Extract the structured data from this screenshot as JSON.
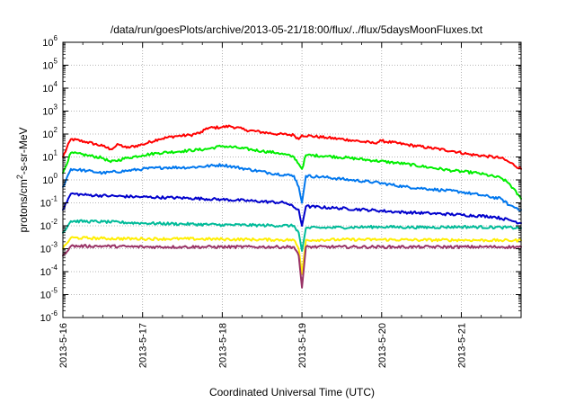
{
  "chart_data": {
    "type": "line",
    "title": "/data/run/goesPlots/archive/2013-05-21/18:00/flux/../flux/5daysMoonFluxes.txt",
    "xlabel": "Coordinated Universal Time (UTC)",
    "ylabel_parts": [
      "protons/cm",
      "2",
      "-s-sr-MeV"
    ],
    "y_scale": "log",
    "ylim_exp": [
      -6,
      6
    ],
    "xlim_days": [
      0,
      5.75
    ],
    "x_ticks": [
      {
        "day": 0,
        "label": "2013-5-16"
      },
      {
        "day": 1,
        "label": "2013-5-17"
      },
      {
        "day": 2,
        "label": "2013-5-18"
      },
      {
        "day": 3,
        "label": "2013-5-19"
      },
      {
        "day": 4,
        "label": "2013-5-20"
      },
      {
        "day": 5,
        "label": "2013-5-21"
      }
    ],
    "y_ticks": [
      {
        "exp": -6,
        "base": "10",
        "sup": "-6"
      },
      {
        "exp": -5,
        "base": "10",
        "sup": "-5"
      },
      {
        "exp": -4,
        "base": "10",
        "sup": "-4"
      },
      {
        "exp": -3,
        "base": "10",
        "sup": "-3"
      },
      {
        "exp": -2,
        "base": "10",
        "sup": "-2"
      },
      {
        "exp": -1,
        "base": "10",
        "sup": "-1"
      },
      {
        "exp": 0,
        "base": "10",
        "sup": "0"
      },
      {
        "exp": 1,
        "base": "10",
        "sup": "1"
      },
      {
        "exp": 2,
        "base": "10",
        "sup": "2"
      },
      {
        "exp": 3,
        "base": "10",
        "sup": "3"
      },
      {
        "exp": 4,
        "base": "10",
        "sup": "4"
      },
      {
        "exp": 5,
        "base": "10",
        "sup": "5"
      },
      {
        "exp": 6,
        "base": "10",
        "sup": "6"
      }
    ],
    "grid": true,
    "series": [
      {
        "color": "#ff0000",
        "points": [
          [
            0,
            10
          ],
          [
            0.1,
            60
          ],
          [
            0.3,
            45
          ],
          [
            0.5,
            30
          ],
          [
            0.6,
            22
          ],
          [
            0.7,
            35
          ],
          [
            0.8,
            25
          ],
          [
            1.0,
            35
          ],
          [
            1.2,
            60
          ],
          [
            1.4,
            80
          ],
          [
            1.6,
            90
          ],
          [
            1.75,
            120
          ],
          [
            1.8,
            180
          ],
          [
            2.0,
            200
          ],
          [
            2.1,
            220
          ],
          [
            2.3,
            150
          ],
          [
            2.5,
            120
          ],
          [
            2.7,
            100
          ],
          [
            2.9,
            90
          ],
          [
            2.96,
            60
          ],
          [
            3.0,
            90
          ],
          [
            3.3,
            70
          ],
          [
            3.6,
            55
          ],
          [
            3.9,
            40
          ],
          [
            4.0,
            50
          ],
          [
            4.3,
            35
          ],
          [
            4.6,
            25
          ],
          [
            4.9,
            18
          ],
          [
            5.1,
            13
          ],
          [
            5.3,
            11
          ],
          [
            5.5,
            9
          ],
          [
            5.6,
            6
          ],
          [
            5.75,
            3
          ]
        ]
      },
      {
        "color": "#00ee00",
        "points": [
          [
            0,
            2
          ],
          [
            0.1,
            15
          ],
          [
            0.3,
            12
          ],
          [
            0.5,
            9
          ],
          [
            0.6,
            6
          ],
          [
            0.8,
            9
          ],
          [
            1.0,
            12
          ],
          [
            1.2,
            15
          ],
          [
            1.5,
            18
          ],
          [
            1.8,
            22
          ],
          [
            2.0,
            30
          ],
          [
            2.2,
            25
          ],
          [
            2.5,
            18
          ],
          [
            2.7,
            15
          ],
          [
            2.9,
            10
          ],
          [
            2.96,
            5
          ],
          [
            3.0,
            3
          ],
          [
            3.05,
            12
          ],
          [
            3.3,
            11
          ],
          [
            3.6,
            9
          ],
          [
            3.9,
            7
          ],
          [
            4.3,
            5
          ],
          [
            4.6,
            3.5
          ],
          [
            4.9,
            2.5
          ],
          [
            5.2,
            2
          ],
          [
            5.5,
            1.2
          ],
          [
            5.6,
            0.7
          ],
          [
            5.75,
            0.15
          ]
        ]
      },
      {
        "color": "#0077ee",
        "points": [
          [
            0,
            0.5
          ],
          [
            0.1,
            3
          ],
          [
            0.3,
            2.5
          ],
          [
            0.5,
            2
          ],
          [
            0.8,
            2.5
          ],
          [
            1.0,
            3
          ],
          [
            1.3,
            3.5
          ],
          [
            1.6,
            3.5
          ],
          [
            2.0,
            4.5
          ],
          [
            2.3,
            3
          ],
          [
            2.6,
            2
          ],
          [
            2.9,
            1.5
          ],
          [
            2.96,
            0.5
          ],
          [
            3.0,
            0.1
          ],
          [
            3.05,
            1.5
          ],
          [
            3.3,
            1.3
          ],
          [
            3.6,
            1
          ],
          [
            3.9,
            0.8
          ],
          [
            4.3,
            0.5
          ],
          [
            4.6,
            0.4
          ],
          [
            5.0,
            0.3
          ],
          [
            5.3,
            0.2
          ],
          [
            5.5,
            0.15
          ],
          [
            5.6,
            0.08
          ],
          [
            5.75,
            0.05
          ]
        ]
      },
      {
        "color": "#0000cc",
        "points": [
          [
            0,
            0.05
          ],
          [
            0.1,
            0.25
          ],
          [
            0.3,
            0.22
          ],
          [
            0.6,
            0.2
          ],
          [
            1.0,
            0.18
          ],
          [
            1.3,
            0.17
          ],
          [
            1.6,
            0.16
          ],
          [
            2.0,
            0.14
          ],
          [
            2.4,
            0.12
          ],
          [
            2.8,
            0.1
          ],
          [
            2.96,
            0.05
          ],
          [
            3.0,
            0.01
          ],
          [
            3.05,
            0.07
          ],
          [
            3.4,
            0.06
          ],
          [
            3.8,
            0.05
          ],
          [
            4.2,
            0.04
          ],
          [
            4.6,
            0.035
          ],
          [
            5.0,
            0.03
          ],
          [
            5.4,
            0.025
          ],
          [
            5.6,
            0.018
          ],
          [
            5.75,
            0.013
          ]
        ]
      },
      {
        "color": "#00bb99",
        "points": [
          [
            0,
            0.005
          ],
          [
            0.1,
            0.016
          ],
          [
            0.5,
            0.015
          ],
          [
            1.0,
            0.013
          ],
          [
            1.5,
            0.012
          ],
          [
            2.0,
            0.011
          ],
          [
            2.5,
            0.0105
          ],
          [
            2.9,
            0.01
          ],
          [
            2.96,
            0.005
          ],
          [
            3.0,
            0.0008
          ],
          [
            3.05,
            0.008
          ],
          [
            3.5,
            0.0085
          ],
          [
            4.0,
            0.009
          ],
          [
            4.5,
            0.0085
          ],
          [
            5.0,
            0.009
          ],
          [
            5.5,
            0.0085
          ],
          [
            5.75,
            0.008
          ]
        ]
      },
      {
        "color": "#ffee00",
        "points": [
          [
            0,
            0.001
          ],
          [
            0.1,
            0.003
          ],
          [
            0.5,
            0.0028
          ],
          [
            1.0,
            0.0027
          ],
          [
            1.5,
            0.0027
          ],
          [
            2.0,
            0.0026
          ],
          [
            2.5,
            0.0025
          ],
          [
            2.9,
            0.0024
          ],
          [
            2.96,
            0.001
          ],
          [
            3.0,
            8e-05
          ],
          [
            3.05,
            0.0024
          ],
          [
            3.5,
            0.0025
          ],
          [
            4.0,
            0.0025
          ],
          [
            4.5,
            0.0024
          ],
          [
            5.0,
            0.0024
          ],
          [
            5.5,
            0.0023
          ],
          [
            5.75,
            0.0023
          ]
        ]
      },
      {
        "color": "#993366",
        "points": [
          [
            0,
            0.0005
          ],
          [
            0.1,
            0.0013
          ],
          [
            0.5,
            0.0013
          ],
          [
            1.0,
            0.0012
          ],
          [
            1.5,
            0.0012
          ],
          [
            2.0,
            0.0012
          ],
          [
            2.5,
            0.0012
          ],
          [
            2.9,
            0.0012
          ],
          [
            2.96,
            0.0005
          ],
          [
            3.0,
            2e-05
          ],
          [
            3.05,
            0.0012
          ],
          [
            3.5,
            0.0012
          ],
          [
            4.0,
            0.0012
          ],
          [
            4.5,
            0.0012
          ],
          [
            5.0,
            0.0012
          ],
          [
            5.5,
            0.0012
          ],
          [
            5.75,
            0.0012
          ]
        ]
      }
    ]
  }
}
